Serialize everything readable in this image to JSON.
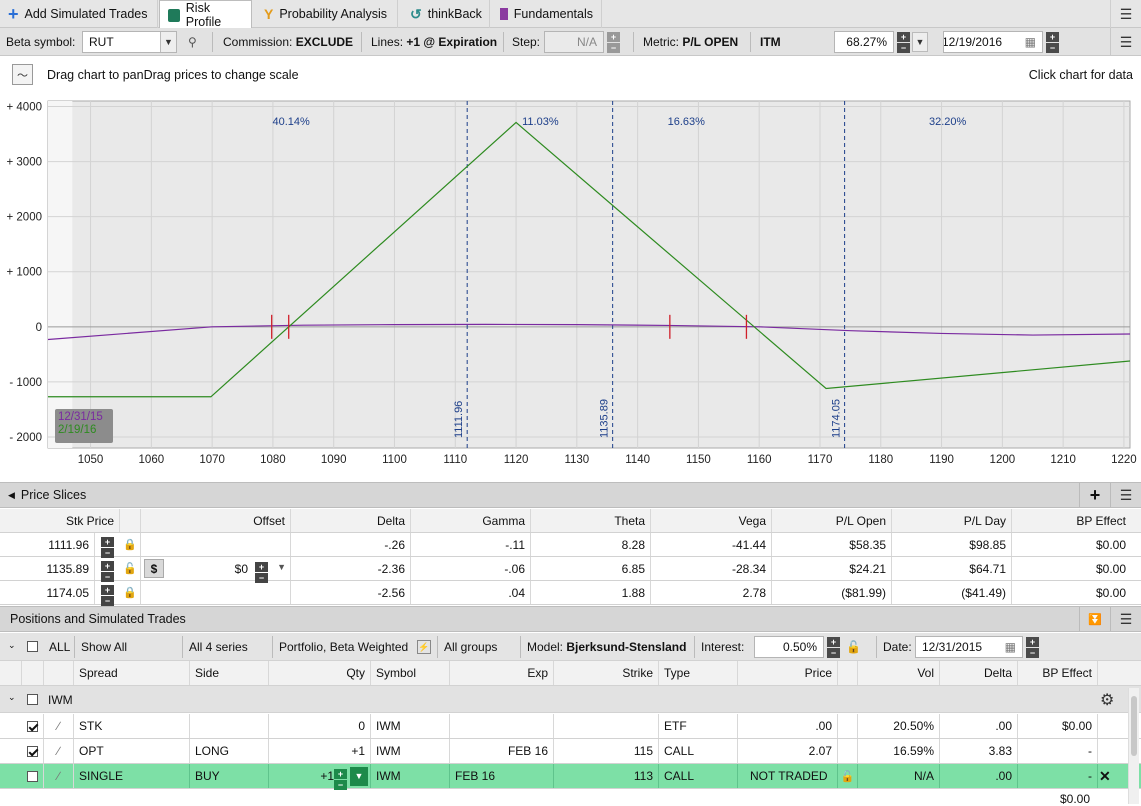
{
  "tabs": [
    {
      "label": "Add Simulated Trades",
      "icon": "plus-icon"
    },
    {
      "label": "Risk Profile",
      "icon": "risk-profile-icon"
    },
    {
      "label": "Probability Analysis",
      "icon": "probability-icon"
    },
    {
      "label": "thinkBack",
      "icon": "thinkback-icon"
    },
    {
      "label": "Fundamentals",
      "icon": "fundamentals-icon"
    }
  ],
  "toolbar": {
    "beta_label": "Beta symbol:",
    "beta_value": "RUT",
    "commission_label": "Commission:",
    "commission_value": "EXCLUDE",
    "lines_label": "Lines:",
    "lines_value": "+1 @ Expiration",
    "step_label": "Step:",
    "step_value": "N/A",
    "metric_label": "Metric:",
    "metric_value": "P/L OPEN",
    "itm": "ITM",
    "prob_value": "68.27%",
    "date_value": "12/19/2016"
  },
  "chart_header": {
    "hint": "Drag chart to panDrag prices to change scale",
    "click_hint": "Click chart for data"
  },
  "chart_data": {
    "type": "line",
    "xlim": [
      1043,
      1221
    ],
    "ylim": [
      -2200,
      4100
    ],
    "x_ticks": [
      1050,
      1060,
      1070,
      1080,
      1090,
      1100,
      1110,
      1120,
      1130,
      1140,
      1150,
      1160,
      1170,
      1180,
      1190,
      1200,
      1210,
      1220
    ],
    "y_ticks": [
      {
        "v": 4000,
        "label": "+ 4000"
      },
      {
        "v": 3000,
        "label": "+ 3000"
      },
      {
        "v": 2000,
        "label": "+ 2000"
      },
      {
        "v": 1000,
        "label": "+ 1000"
      },
      {
        "v": 0,
        "label": "0"
      },
      {
        "v": -1000,
        "label": "- 1000"
      },
      {
        "v": -2000,
        "label": "- 2000"
      }
    ],
    "region_pcts": [
      {
        "x": 1083,
        "label": "40.14%"
      },
      {
        "x": 1124,
        "label": "11.03%"
      },
      {
        "x": 1148,
        "label": "16.63%"
      },
      {
        "x": 1191,
        "label": "32.20%"
      }
    ],
    "vlines": [
      {
        "x": 1111.96,
        "label": "1111.96"
      },
      {
        "x": 1135.89,
        "label": "1135.89"
      },
      {
        "x": 1174.05,
        "label": "1174.05"
      }
    ],
    "break_marks": [
      1079.8,
      1082.6,
      1145.3,
      1157.9
    ],
    "series": [
      {
        "name": "12/31/15",
        "color": "#7a2aa0",
        "x": [
          1043,
          1070,
          1085,
          1100,
          1115,
          1130,
          1145,
          1160,
          1175,
          1190,
          1205,
          1221
        ],
        "y": [
          -230,
          0,
          30,
          40,
          45,
          40,
          25,
          0,
          -70,
          -120,
          -150,
          -130
        ]
      },
      {
        "name": "2/19/16",
        "color": "#2e8b20",
        "x": [
          1043,
          1069.8,
          1120,
          1171,
          1221
        ],
        "y": [
          -1270,
          -1270,
          3710,
          -1120,
          -620
        ]
      }
    ],
    "legend": [
      "12/31/15",
      "2/19/16"
    ]
  },
  "price_slices": {
    "title": "Price Slices",
    "columns": [
      "Stk Price",
      "Offset",
      "Delta",
      "Gamma",
      "Theta",
      "Vega",
      "P/L Open",
      "P/L Day",
      "BP Effect"
    ],
    "rows": [
      {
        "stk": "1111.96",
        "offset": "",
        "delta": "-.26",
        "gamma": "-.11",
        "theta": "8.28",
        "vega": "-41.44",
        "plopen": "$58.35",
        "plday": "$98.85",
        "bp": "$0.00"
      },
      {
        "stk": "1135.89",
        "offset": "$0",
        "delta": "-2.36",
        "gamma": "-.06",
        "theta": "6.85",
        "vega": "-28.34",
        "plopen": "$24.21",
        "plday": "$64.71",
        "bp": "$0.00"
      },
      {
        "stk": "1174.05",
        "offset": "",
        "delta": "-2.56",
        "gamma": ".04",
        "theta": "1.88",
        "vega": "2.78",
        "plopen": "($81.99)",
        "plday": "($41.49)",
        "bp": "$0.00"
      }
    ],
    "dollar_sign": "$"
  },
  "positions": {
    "title": "Positions and Simulated Trades",
    "filter": {
      "all": "ALL",
      "show": "Show All",
      "series": "All 4 series",
      "portfolio": "Portfolio, Beta Weighted",
      "groups": "All groups",
      "model_label": "Model:",
      "model_value": "Bjerksund-Stensland",
      "interest_label": "Interest:",
      "interest_value": "0.50%",
      "date_label": "Date:",
      "date_value": "12/31/2015"
    },
    "columns": [
      "Spread",
      "Side",
      "Qty",
      "Symbol",
      "Exp",
      "Strike",
      "Type",
      "Price",
      "Vol",
      "Delta",
      "BP Effect"
    ],
    "group": "IWM",
    "rows": [
      {
        "spread": "STK",
        "side": "",
        "qty": "0",
        "symbol": "IWM",
        "exp": "",
        "strike": "",
        "type": "ETF",
        "price": ".00",
        "vol": "20.50%",
        "delta": ".00",
        "bp": "$0.00"
      },
      {
        "spread": "OPT",
        "side": "LONG",
        "qty": "+1",
        "symbol": "IWM",
        "exp": "FEB 16",
        "strike": "115",
        "type": "CALL",
        "price": "2.07",
        "vol": "16.59%",
        "delta": "3.83",
        "bp": "-"
      },
      {
        "spread": "SINGLE",
        "side": "BUY",
        "qty": "+1",
        "symbol": "IWM",
        "exp": "FEB 16",
        "strike": "113",
        "type": "CALL",
        "price": "NOT TRADED",
        "vol": "N/A",
        "delta": ".00",
        "bp": "-"
      }
    ],
    "total_bp": "$0.00"
  }
}
